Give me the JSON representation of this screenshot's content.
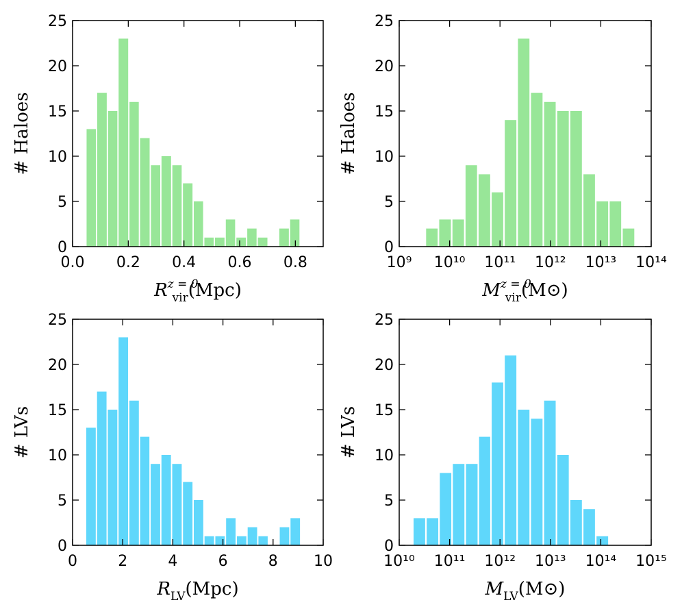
{
  "chart_data": [
    {
      "type": "histogram",
      "xscale": "linear",
      "color": "#98e698",
      "bins": [
        0.048,
        0.086,
        0.125,
        0.163,
        0.202,
        0.24,
        0.279,
        0.317,
        0.356,
        0.394,
        0.433,
        0.471,
        0.509,
        0.548,
        0.586,
        0.625,
        0.663,
        0.702,
        0.74,
        0.779,
        0.817
      ],
      "counts": [
        13,
        17,
        15,
        23,
        16,
        12,
        9,
        10,
        9,
        7,
        5,
        1,
        1,
        3,
        1,
        2,
        1,
        0,
        2,
        3
      ],
      "xlim": [
        0,
        0.9
      ],
      "xticks": [
        {
          "value": 0,
          "label": "0.0"
        },
        0.2,
        0.4,
        0.6,
        0.8
      ],
      "ylim": [
        0,
        25
      ],
      "yticks": [
        0,
        5,
        10,
        15,
        20,
        25
      ],
      "ylabel": "# Haloes",
      "xlabel": {
        "main": "R",
        "sub": "vir",
        "sup": "z = 0",
        "unit": "(Mpc)"
      }
    },
    {
      "type": "histogram",
      "xscale": "log",
      "color": "#98e698",
      "bins": [
        3300000000.0,
        6000000000.0,
        11000000000.0,
        20000000000.0,
        36300000000.0,
        66100000000.0,
        120000000000.0,
        219000000000.0,
        398000000000.0,
        724000000000.0,
        1320000000000.0,
        2400000000000.0,
        4370000000000.0,
        7940000000000.0,
        14500000000000.0,
        26300000000000.0,
        47900000000000.0
      ],
      "counts": [
        2,
        3,
        3,
        9,
        8,
        6,
        14,
        23,
        17,
        16,
        15,
        15,
        8,
        5,
        5,
        2
      ],
      "xlim": [
        1000000000.0,
        100000000000000.0
      ],
      "xticks": [
        {
          "value": 1000000000.0,
          "label": "10⁹"
        },
        {
          "value": 10000000000.0,
          "label": "10¹⁰"
        },
        {
          "value": 100000000000.0,
          "label": "10¹¹"
        },
        {
          "value": 1000000000000.0,
          "label": "10¹²"
        },
        {
          "value": 10000000000000.0,
          "label": "10¹³"
        },
        {
          "value": 100000000000000.0,
          "label": "10¹⁴"
        }
      ],
      "ylim": [
        0,
        25
      ],
      "yticks": [
        0,
        5,
        10,
        15,
        20,
        25
      ],
      "ylabel": "# Haloes",
      "xlabel": {
        "main": "M",
        "sub": "vir",
        "sup": "z = 0",
        "unit": "(M⊙)"
      }
    },
    {
      "type": "histogram",
      "xscale": "linear",
      "color": "#5fd7fb",
      "bins": [
        0.52,
        0.95,
        1.38,
        1.81,
        2.24,
        2.67,
        3.09,
        3.52,
        3.95,
        4.38,
        4.81,
        5.24,
        5.67,
        6.1,
        6.53,
        6.96,
        7.39,
        7.81,
        8.24,
        8.67,
        9.1
      ],
      "counts": [
        13,
        17,
        15,
        23,
        16,
        12,
        9,
        10,
        9,
        7,
        5,
        1,
        1,
        3,
        1,
        2,
        1,
        0,
        2,
        3
      ],
      "xlim": [
        0,
        10
      ],
      "xticks": [
        0,
        2,
        4,
        6,
        8,
        10
      ],
      "ylim": [
        0,
        25
      ],
      "yticks": [
        0,
        5,
        10,
        15,
        20,
        25
      ],
      "ylabel": "# LVs",
      "xlabel": {
        "main": "R",
        "sub": "LV",
        "unit": "(Mpc)"
      }
    },
    {
      "type": "histogram",
      "xscale": "log",
      "color": "#5fd7fb",
      "bins": [
        18600000000.0,
        33900000000.0,
        61700000000.0,
        112000000000.0,
        204000000000.0,
        372000000000.0,
        661000000000.0,
        1200000000000.0,
        2190000000000.0,
        3980000000000.0,
        7240000000000.0,
        13200000000000.0,
        24000000000000.0,
        43700000000000.0,
        79400000000000.0,
        145000000000000.0
      ],
      "counts": [
        3,
        3,
        8,
        9,
        9,
        12,
        18,
        21,
        15,
        14,
        16,
        10,
        5,
        4,
        1
      ],
      "xlim": [
        10000000000.0,
        1000000000000000.0
      ],
      "xticks": [
        {
          "value": 10000000000.0,
          "label": "10¹⁰"
        },
        {
          "value": 100000000000.0,
          "label": "10¹¹"
        },
        {
          "value": 1000000000000.0,
          "label": "10¹²"
        },
        {
          "value": 10000000000000.0,
          "label": "10¹³"
        },
        {
          "value": 100000000000000.0,
          "label": "10¹⁴"
        },
        {
          "value": 1000000000000000.0,
          "label": "10¹⁵"
        }
      ],
      "ylim": [
        0,
        25
      ],
      "yticks": [
        0,
        5,
        10,
        15,
        20,
        25
      ],
      "ylabel": "# LVs",
      "xlabel": {
        "main": "M",
        "sub": "LV",
        "unit": "(M⊙)"
      }
    }
  ]
}
